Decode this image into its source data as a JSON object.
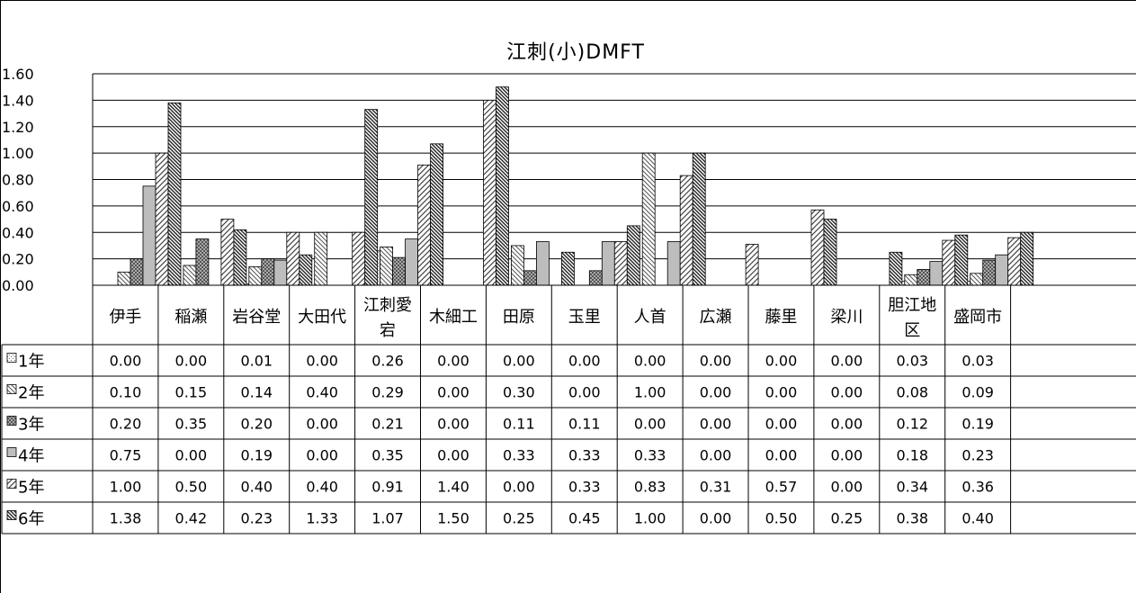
{
  "chart_data": {
    "type": "bar",
    "title": "江刺(小)DMFT",
    "xlabel": "",
    "ylabel": "",
    "ylim": [
      0,
      1.6
    ],
    "yticks": [
      "0.00",
      "0.20",
      "0.40",
      "0.60",
      "0.80",
      "1.00",
      "1.20",
      "1.40",
      "1.60"
    ],
    "grid": true,
    "legend": "data-table-left",
    "categories": [
      "伊手",
      "稲瀬",
      "岩谷堂",
      "大田代",
      "江刺愛宕",
      "木細工",
      "田原",
      "玉里",
      "人首",
      "広瀬",
      "藤里",
      "梁川",
      "胆江地区",
      "盛岡市"
    ],
    "category_lines": [
      [
        "伊手"
      ],
      [
        "稲瀬"
      ],
      [
        "岩谷堂"
      ],
      [
        "大田代"
      ],
      [
        "江刺愛",
        "宕"
      ],
      [
        "木細工"
      ],
      [
        "田原"
      ],
      [
        "玉里"
      ],
      [
        "人首"
      ],
      [
        "広瀬"
      ],
      [
        "藤里"
      ],
      [
        "梁川"
      ],
      [
        "胆江地",
        "区"
      ],
      [
        "盛岡市"
      ]
    ],
    "series": [
      {
        "name": "1年",
        "values": [
          0.0,
          0.0,
          0.01,
          0.0,
          0.26,
          0.0,
          0.0,
          0.0,
          0.0,
          0.0,
          0.0,
          0.0,
          0.03,
          0.03
        ],
        "labels": [
          "0.00",
          "0.00",
          "0.01",
          "0.00",
          "0.26",
          "0.00",
          "0.00",
          "0.00",
          "0.00",
          "0.00",
          "0.00",
          "0.00",
          "0.03",
          "0.03"
        ]
      },
      {
        "name": "2年",
        "values": [
          0.1,
          0.15,
          0.14,
          0.4,
          0.29,
          0.0,
          0.3,
          0.0,
          1.0,
          0.0,
          0.0,
          0.0,
          0.08,
          0.09
        ],
        "labels": [
          "0.10",
          "0.15",
          "0.14",
          "0.40",
          "0.29",
          "0.00",
          "0.30",
          "0.00",
          "1.00",
          "0.00",
          "0.00",
          "0.00",
          "0.08",
          "0.09"
        ]
      },
      {
        "name": "3年",
        "values": [
          0.2,
          0.35,
          0.2,
          0.0,
          0.21,
          0.0,
          0.11,
          0.11,
          0.0,
          0.0,
          0.0,
          0.0,
          0.12,
          0.19
        ],
        "labels": [
          "0.20",
          "0.35",
          "0.20",
          "0.00",
          "0.21",
          "0.00",
          "0.11",
          "0.11",
          "0.00",
          "0.00",
          "0.00",
          "0.00",
          "0.12",
          "0.19"
        ]
      },
      {
        "name": "4年",
        "values": [
          0.75,
          0.0,
          0.19,
          0.0,
          0.35,
          0.0,
          0.33,
          0.33,
          0.33,
          0.0,
          0.0,
          0.0,
          0.18,
          0.23
        ],
        "labels": [
          "0.75",
          "0.00",
          "0.19",
          "0.00",
          "0.35",
          "0.00",
          "0.33",
          "0.33",
          "0.33",
          "0.00",
          "0.00",
          "0.00",
          "0.18",
          "0.23"
        ]
      },
      {
        "name": "5年",
        "values": [
          1.0,
          0.5,
          0.4,
          0.4,
          0.91,
          1.4,
          0.0,
          0.33,
          0.83,
          0.31,
          0.57,
          0.0,
          0.34,
          0.36
        ],
        "labels": [
          "1.00",
          "0.50",
          "0.40",
          "0.40",
          "0.91",
          "1.40",
          "0.00",
          "0.33",
          "0.83",
          "0.31",
          "0.57",
          "0.00",
          "0.34",
          "0.36"
        ]
      },
      {
        "name": "6年",
        "values": [
          1.38,
          0.42,
          0.23,
          1.33,
          1.07,
          1.5,
          0.25,
          0.45,
          1.0,
          0.0,
          0.5,
          0.25,
          0.38,
          0.4
        ],
        "labels": [
          "1.38",
          "0.42",
          "0.23",
          "1.33",
          "1.07",
          "1.50",
          "0.25",
          "0.45",
          "1.00",
          "0.00",
          "0.50",
          "0.25",
          "0.38",
          "0.40"
        ]
      }
    ]
  }
}
